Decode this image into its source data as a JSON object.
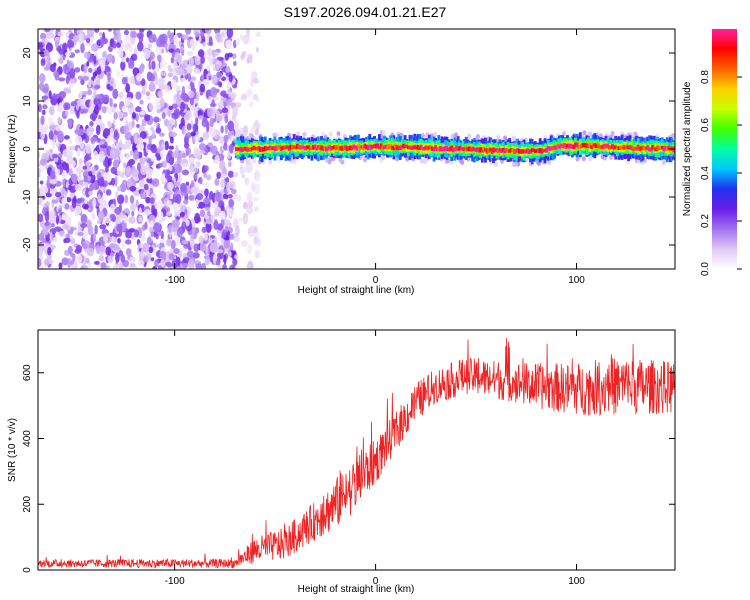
{
  "title": "S197.2026.094.01.21.E27",
  "chart_data": [
    {
      "type": "heatmap",
      "title": "S197.2026.094.01.21.E27",
      "xlabel": "Height of straight line (km)",
      "ylabel": "Frequency (Hz)",
      "xlim": [
        -168,
        149
      ],
      "ylim": [
        -25,
        25
      ],
      "xticks": [
        -100,
        0,
        100
      ],
      "yticks": [
        -20,
        -10,
        0,
        10,
        20
      ],
      "colorbar": {
        "label": "Normalized spectral amplitude",
        "range": [
          0,
          1
        ],
        "ticks": [
          "0.0",
          "0.2",
          "0.4",
          "0.6",
          "0.8"
        ],
        "colors": [
          "#ffffff",
          "#e0c8f5",
          "#a070f0",
          "#6a1ee8",
          "#2030f0",
          "#00c8ff",
          "#00ffa0",
          "#40ff00",
          "#c8ff00",
          "#ffd000",
          "#ff6000",
          "#ff0000",
          "#ff20a0"
        ]
      },
      "regions": [
        {
          "name": "noise",
          "x_start": -168,
          "x_end": -70,
          "freq_range": [
            -25,
            25
          ],
          "amplitude": "0.0-0.25"
        },
        {
          "name": "sparse-noise",
          "x_start": -70,
          "x_end": -58,
          "freq_range": [
            -25,
            25
          ],
          "amplitude": "0.0-0.1"
        },
        {
          "name": "signal-band",
          "x_start": -70,
          "x_end": 149,
          "freq_center": 0,
          "freq_halfwidth": 2,
          "amplitude": "0.3-1.0"
        }
      ],
      "signal_center_offsets": [
        {
          "x": -70,
          "f": 0.0
        },
        {
          "x": -40,
          "f": 0.3
        },
        {
          "x": -20,
          "f": 0.2
        },
        {
          "x": 0,
          "f": 0.5
        },
        {
          "x": 20,
          "f": 0.3
        },
        {
          "x": 40,
          "f": 0.0
        },
        {
          "x": 60,
          "f": -0.3
        },
        {
          "x": 80,
          "f": -0.5
        },
        {
          "x": 92,
          "f": 0.7
        },
        {
          "x": 110,
          "f": 0.6
        },
        {
          "x": 130,
          "f": 0.2
        },
        {
          "x": 149,
          "f": 0.0
        }
      ]
    },
    {
      "type": "line",
      "xlabel": "Height of straight line (km)",
      "ylabel": "SNR (10 * v/v)",
      "xlim": [
        -168,
        149
      ],
      "ylim": [
        0,
        730
      ],
      "xticks": [
        -100,
        0,
        100
      ],
      "yticks": [
        0,
        200,
        400,
        600
      ],
      "color": "#ee2222",
      "series": [
        {
          "name": "SNR",
          "envelope": [
            {
              "x": -168,
              "mean": 20,
              "spread": 12
            },
            {
              "x": -70,
              "mean": 20,
              "spread": 14
            },
            {
              "x": -60,
              "mean": 60,
              "spread": 40
            },
            {
              "x": -45,
              "mean": 80,
              "spread": 50
            },
            {
              "x": -30,
              "mean": 150,
              "spread": 60
            },
            {
              "x": -20,
              "mean": 200,
              "spread": 80
            },
            {
              "x": -10,
              "mean": 260,
              "spread": 80
            },
            {
              "x": 0,
              "mean": 330,
              "spread": 70
            },
            {
              "x": 10,
              "mean": 420,
              "spread": 60
            },
            {
              "x": 20,
              "mean": 510,
              "spread": 60
            },
            {
              "x": 30,
              "mean": 560,
              "spread": 55
            },
            {
              "x": 45,
              "mean": 590,
              "spread": 55
            },
            {
              "x": 60,
              "mean": 580,
              "spread": 60
            },
            {
              "x": 80,
              "mean": 560,
              "spread": 70
            },
            {
              "x": 100,
              "mean": 550,
              "spread": 80
            },
            {
              "x": 120,
              "mean": 560,
              "spread": 90
            },
            {
              "x": 149,
              "mean": 555,
              "spread": 80
            }
          ]
        }
      ]
    }
  ]
}
